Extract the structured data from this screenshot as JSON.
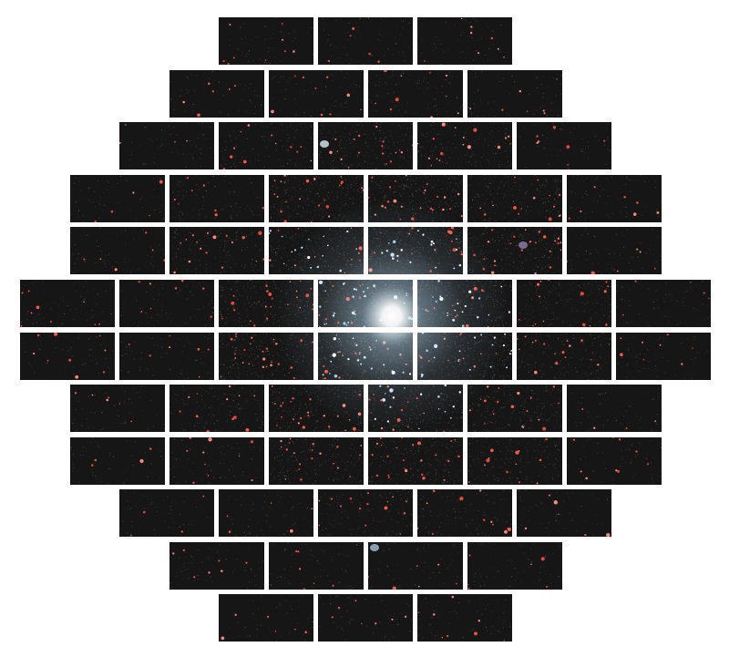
{
  "image": {
    "subject": "globular-cluster",
    "background_color": "#ffffff",
    "chip_color": "#161616"
  },
  "mosaic": {
    "rows": [
      {
        "chips": 3
      },
      {
        "chips": 4
      },
      {
        "chips": 5
      },
      {
        "chips": 6
      },
      {
        "chips": 6
      },
      {
        "chips": 7
      },
      {
        "chips": 7
      },
      {
        "chips": 6
      },
      {
        "chips": 6
      },
      {
        "chips": 5
      },
      {
        "chips": 4
      },
      {
        "chips": 3
      }
    ],
    "star_colors": [
      "#ff5a4a",
      "#ff8a7a",
      "#e04a3a",
      "#ffffff",
      "#cfe6ff",
      "#9fd0ff"
    ]
  },
  "cluster_core": {
    "color": "#ffffff",
    "halo_color": "#bfe6ff"
  }
}
